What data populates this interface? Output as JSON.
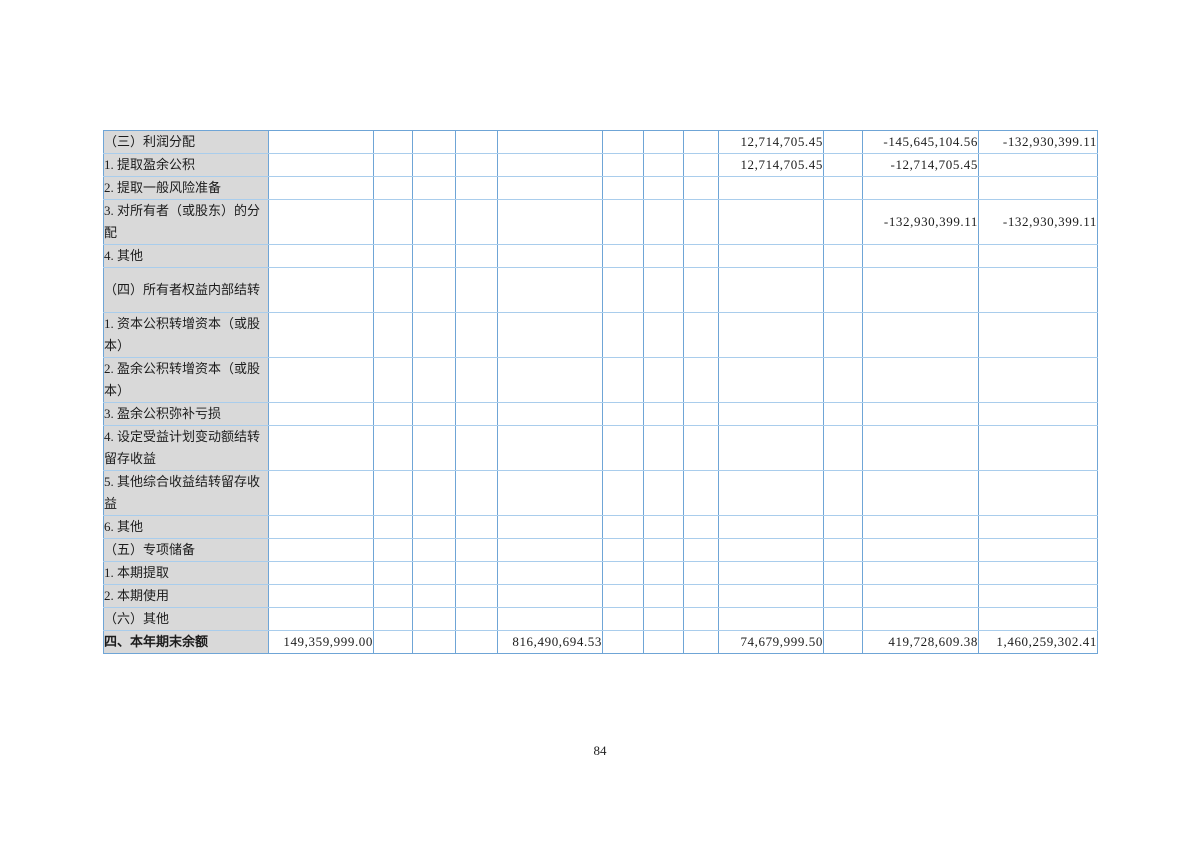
{
  "page": {
    "number": "84"
  },
  "table": {
    "rows": [
      {
        "label": "（三）利润分配",
        "bold": false,
        "tall": false,
        "values": [
          "",
          "",
          "",
          "",
          "",
          "",
          "",
          "",
          "12,714,705.45",
          "",
          "-145,645,104.56",
          "-132,930,399.11"
        ]
      },
      {
        "label": "1. 提取盈余公积",
        "bold": false,
        "tall": false,
        "values": [
          "",
          "",
          "",
          "",
          "",
          "",
          "",
          "",
          "12,714,705.45",
          "",
          "-12,714,705.45",
          ""
        ]
      },
      {
        "label": "2. 提取一般风险准备",
        "bold": false,
        "tall": false,
        "values": [
          "",
          "",
          "",
          "",
          "",
          "",
          "",
          "",
          "",
          "",
          "",
          ""
        ]
      },
      {
        "label": "3. 对所有者（或股东）的分配",
        "bold": false,
        "tall": true,
        "values": [
          "",
          "",
          "",
          "",
          "",
          "",
          "",
          "",
          "",
          "",
          "-132,930,399.11",
          "-132,930,399.11"
        ]
      },
      {
        "label": "4. 其他",
        "bold": false,
        "tall": false,
        "values": [
          "",
          "",
          "",
          "",
          "",
          "",
          "",
          "",
          "",
          "",
          "",
          ""
        ]
      },
      {
        "label": "（四）所有者权益内部结转",
        "bold": false,
        "tall": true,
        "values": [
          "",
          "",
          "",
          "",
          "",
          "",
          "",
          "",
          "",
          "",
          "",
          ""
        ]
      },
      {
        "label": "1. 资本公积转增资本（或股本）",
        "bold": false,
        "tall": true,
        "values": [
          "",
          "",
          "",
          "",
          "",
          "",
          "",
          "",
          "",
          "",
          "",
          ""
        ]
      },
      {
        "label": "2. 盈余公积转增资本（或股本）",
        "bold": false,
        "tall": true,
        "values": [
          "",
          "",
          "",
          "",
          "",
          "",
          "",
          "",
          "",
          "",
          "",
          ""
        ]
      },
      {
        "label": "3. 盈余公积弥补亏损",
        "bold": false,
        "tall": false,
        "values": [
          "",
          "",
          "",
          "",
          "",
          "",
          "",
          "",
          "",
          "",
          "",
          ""
        ]
      },
      {
        "label": "4. 设定受益计划变动额结转留存收益",
        "bold": false,
        "tall": true,
        "values": [
          "",
          "",
          "",
          "",
          "",
          "",
          "",
          "",
          "",
          "",
          "",
          ""
        ]
      },
      {
        "label": "5. 其他综合收益结转留存收益",
        "bold": false,
        "tall": true,
        "values": [
          "",
          "",
          "",
          "",
          "",
          "",
          "",
          "",
          "",
          "",
          "",
          ""
        ]
      },
      {
        "label": "6. 其他",
        "bold": false,
        "tall": false,
        "values": [
          "",
          "",
          "",
          "",
          "",
          "",
          "",
          "",
          "",
          "",
          "",
          ""
        ]
      },
      {
        "label": "（五）专项储备",
        "bold": false,
        "tall": false,
        "values": [
          "",
          "",
          "",
          "",
          "",
          "",
          "",
          "",
          "",
          "",
          "",
          ""
        ]
      },
      {
        "label": "1. 本期提取",
        "bold": false,
        "tall": false,
        "values": [
          "",
          "",
          "",
          "",
          "",
          "",
          "",
          "",
          "",
          "",
          "",
          ""
        ]
      },
      {
        "label": "2. 本期使用",
        "bold": false,
        "tall": false,
        "values": [
          "",
          "",
          "",
          "",
          "",
          "",
          "",
          "",
          "",
          "",
          "",
          ""
        ]
      },
      {
        "label": "（六）其他",
        "bold": false,
        "tall": false,
        "values": [
          "",
          "",
          "",
          "",
          "",
          "",
          "",
          "",
          "",
          "",
          "",
          ""
        ]
      },
      {
        "label": "四、本年期末余额",
        "bold": true,
        "tall": false,
        "values": [
          "149,359,999.00",
          "",
          "",
          "",
          "816,490,694.53",
          "",
          "",
          "",
          "74,679,999.50",
          "",
          "419,728,609.38",
          "1,460,259,302.41"
        ]
      }
    ]
  }
}
